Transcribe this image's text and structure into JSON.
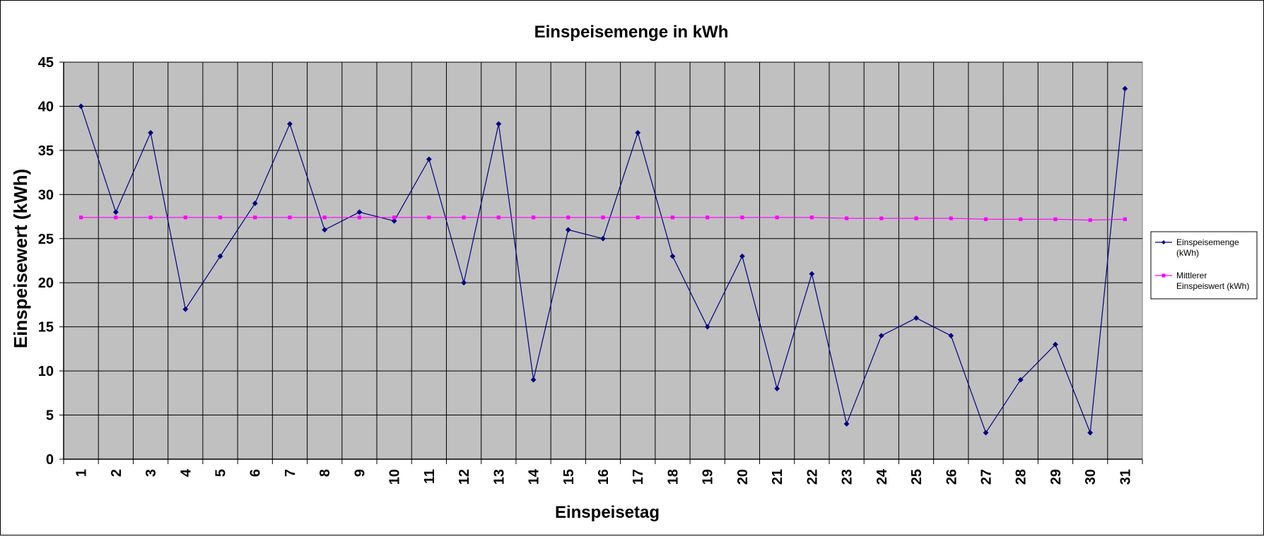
{
  "chart_data": {
    "type": "line",
    "title": "Einspeisemenge in kWh",
    "xlabel": "Einspeisetag",
    "ylabel": "Einspeisewert  (kWh)",
    "x": [
      1,
      2,
      3,
      4,
      5,
      6,
      7,
      8,
      9,
      10,
      11,
      12,
      13,
      14,
      15,
      16,
      17,
      18,
      19,
      20,
      21,
      22,
      23,
      24,
      25,
      26,
      27,
      28,
      29,
      30,
      31
    ],
    "ylim": [
      0,
      45
    ],
    "yticks": [
      0,
      5,
      10,
      15,
      20,
      25,
      30,
      35,
      40,
      45
    ],
    "grid": true,
    "plot_background": "#c0c0c0",
    "legend_position": "right",
    "series": [
      {
        "name": "Einspeisemenge (kWh)",
        "legend_lines": [
          "Einspeisemenge",
          "(kWh)"
        ],
        "color": "#000080",
        "marker": "diamond",
        "values": [
          40,
          28,
          37,
          17,
          23,
          29,
          38,
          26,
          28,
          27,
          34,
          20,
          38,
          9,
          26,
          25,
          37,
          23,
          15,
          23,
          8,
          21,
          4,
          14,
          16,
          14,
          3,
          9,
          13,
          3,
          42
        ]
      },
      {
        "name": "Mittlerer Einspeiswert (kWh)",
        "legend_lines": [
          "Mittlerer",
          "Einspeiswert (kWh)"
        ],
        "color": "#ff00ff",
        "marker": "square",
        "values": [
          27.4,
          27.4,
          27.4,
          27.4,
          27.4,
          27.4,
          27.4,
          27.4,
          27.4,
          27.4,
          27.4,
          27.4,
          27.4,
          27.4,
          27.4,
          27.4,
          27.4,
          27.4,
          27.4,
          27.4,
          27.4,
          27.4,
          27.3,
          27.3,
          27.3,
          27.3,
          27.2,
          27.2,
          27.2,
          27.1,
          27.2
        ]
      }
    ]
  }
}
